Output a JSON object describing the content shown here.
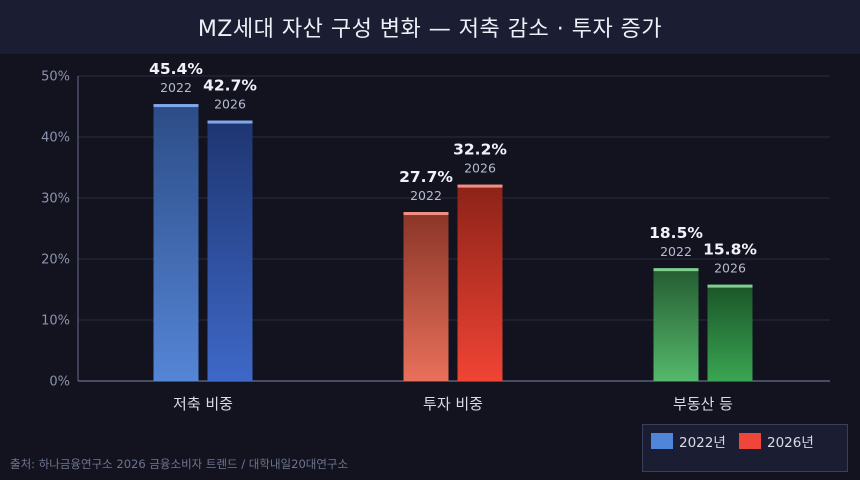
{
  "title": "MZ세대 자산 구성 변화 — 저축 감소 · 투자 증가",
  "source": "출처: 하나금융연구소 2026 금융소비자 트렌드 / 대학내일20대연구소",
  "colors": {
    "2022": "#4f86d9",
    "2026": "#f0453a",
    "savings": [
      "#2c4c86",
      "#5585d6"
    ],
    "savings2": [
      "#1e3570",
      "#3e68c8"
    ],
    "invest": [
      "#8a3528",
      "#e8705a"
    ],
    "invest2": [
      "#8c2218",
      "#f04434"
    ],
    "realestate": [
      "#245c32",
      "#55b86a"
    ],
    "realestate2": [
      "#1a5428",
      "#3aa552"
    ],
    "savings_cap": "#7fa8ee",
    "invest_cap": "#f09080",
    "realestate_cap": "#7fd090"
  },
  "chart_data": {
    "type": "bar",
    "categories": [
      "저축 비중",
      "투자 비중",
      "부동산 등"
    ],
    "series": [
      {
        "name": "2022년",
        "year_label": "2022",
        "values": [
          45.4,
          27.7,
          18.5
        ],
        "labels": [
          "45.4%",
          "27.7%",
          "18.5%"
        ]
      },
      {
        "name": "2026년",
        "year_label": "2026",
        "values": [
          42.7,
          32.2,
          15.8
        ],
        "labels": [
          "42.7%",
          "32.2%",
          "15.8%"
        ]
      }
    ],
    "ylim": [
      0,
      50
    ],
    "yticks": [
      0,
      10,
      20,
      30,
      40,
      50
    ],
    "ytick_labels": [
      "0%",
      "10%",
      "20%",
      "30%",
      "40%",
      "50%"
    ],
    "grid": true,
    "legend": "bottom-right"
  },
  "legend": {
    "items": [
      {
        "label": "2022년",
        "color": "#4f86d9"
      },
      {
        "label": "2026년",
        "color": "#f0453a"
      }
    ]
  }
}
